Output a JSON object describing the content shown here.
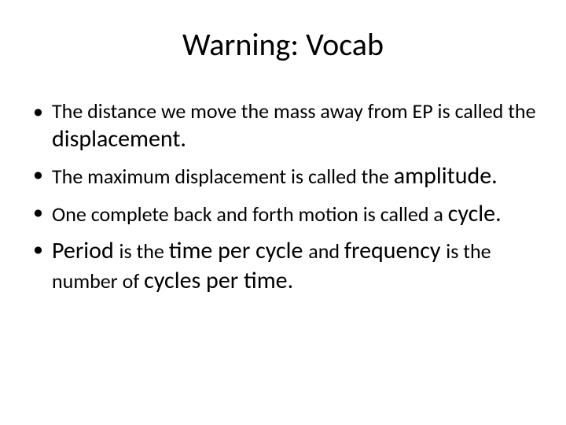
{
  "slide": {
    "title": "Warning: Vocab",
    "bullets": [
      {
        "pre": "The distance we move the mass away from EP is called the ",
        "emph1": "displacement.",
        "mid": "",
        "emph2": "",
        "post": ""
      },
      {
        "pre": "The maximum displacement is called the ",
        "emph1": "amplitude.",
        "mid": "",
        "emph2": "",
        "post": ""
      },
      {
        "pre": "One complete back and forth motion is called a ",
        "emph1": "cycle.",
        "mid": "",
        "emph2": "",
        "post": ""
      },
      {
        "pre": "Period ",
        "emph1": "",
        "mid": "is the ",
        "emph2": "time per cycle ",
        "post": "and ",
        "tail_pre": "frequency ",
        "tail_mid": "is the number of ",
        "tail_emph": "cycles per time."
      }
    ],
    "style": {
      "background_color": "#ffffff",
      "text_color": "#000000",
      "title_fontsize": 40,
      "body_fontsize": 26,
      "emph_fontsize": 30,
      "font_family": "Calibri"
    }
  }
}
